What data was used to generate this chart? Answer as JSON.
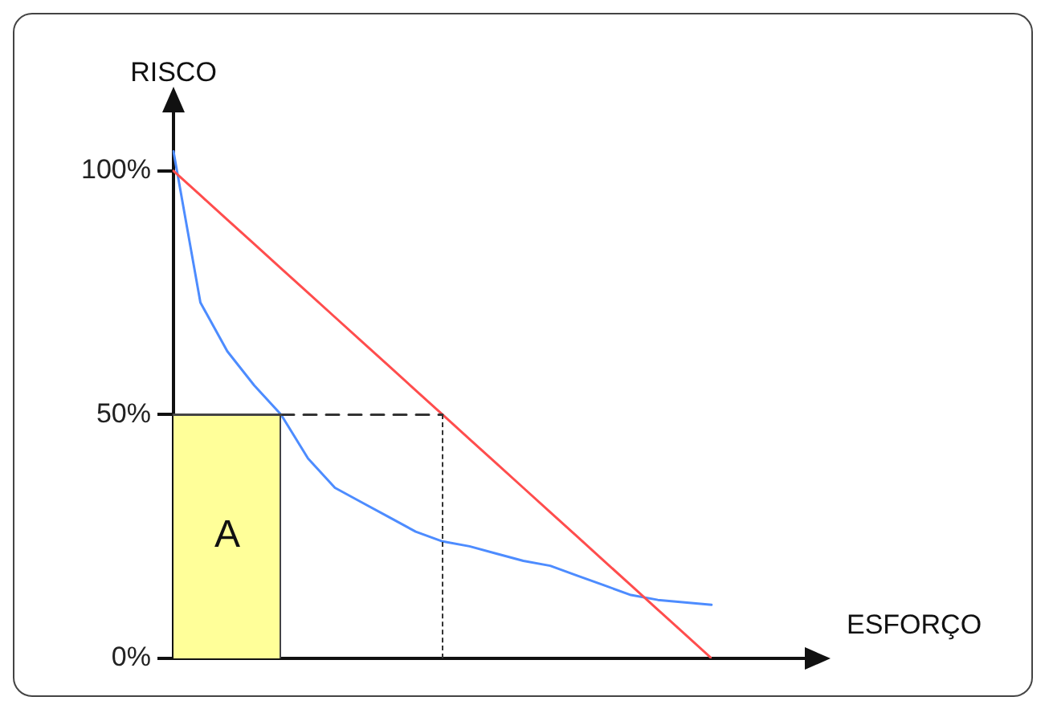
{
  "chart_data": {
    "type": "line",
    "xlabel": "ESFORÇO",
    "ylabel": "RISCO",
    "categories": [
      null,
      null,
      null,
      null,
      null,
      null,
      null,
      null,
      null,
      null,
      null,
      null,
      null,
      null,
      null,
      null,
      null,
      null,
      null,
      null,
      null
    ],
    "ylim": [
      0,
      112
    ],
    "yticks": [
      {
        "value": 0,
        "label": "0%"
      },
      {
        "value": 50,
        "label": "50%"
      },
      {
        "value": 100,
        "label": "100%"
      }
    ],
    "tick_labels": "y",
    "grid": false,
    "legend": false,
    "marker": "none",
    "series": [
      {
        "type": "area",
        "color": "#ffff99",
        "values": [
          50,
          50,
          50,
          50,
          50,
          null,
          null,
          null,
          null,
          null,
          null,
          null,
          null,
          null,
          null,
          null,
          null,
          null,
          null,
          null,
          null
        ]
      },
      {
        "type": "line",
        "color": "#333333",
        "line_style": "dashed",
        "values": [
          null,
          null,
          null,
          null,
          50,
          50,
          50,
          50,
          50,
          50,
          50,
          null,
          null,
          null,
          null,
          null,
          null,
          null,
          null,
          null,
          null
        ]
      },
      {
        "color": "#ff4d4d",
        "values": [
          100,
          95,
          90,
          85,
          80,
          75,
          70,
          65,
          60,
          55,
          50,
          45,
          40,
          35,
          30,
          25,
          20,
          15,
          10,
          5,
          0
        ]
      },
      {
        "color": "#4d8cff",
        "values": [
          104,
          73,
          63,
          56,
          50,
          41,
          35,
          32,
          29,
          26,
          24,
          23,
          21.5,
          20,
          19,
          17,
          15,
          13,
          12,
          11.5,
          11
        ]
      }
    ],
    "annotations": [
      "A"
    ]
  }
}
